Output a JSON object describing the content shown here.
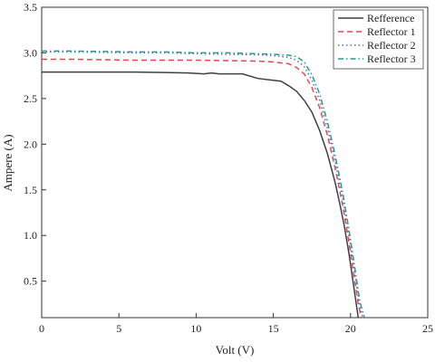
{
  "chart_data": {
    "type": "line",
    "xlabel": "Volt (V)",
    "ylabel": "Ampere (A)",
    "xlim": [
      0,
      25
    ],
    "ylim": [
      0.1,
      3.5
    ],
    "xticks": [
      "0",
      "5",
      "10",
      "15",
      "20",
      "25"
    ],
    "yticks": [
      "0.5",
      "1.0",
      "1.5",
      "2.0",
      "2.5",
      "3.0",
      "3.5"
    ],
    "grid": false,
    "legend_position": "top-right",
    "series": [
      {
        "name": "Refference",
        "color": "#404040",
        "dash": "solid",
        "points": [
          [
            0,
            2.79
          ],
          [
            2,
            2.79
          ],
          [
            4,
            2.79
          ],
          [
            6,
            2.79
          ],
          [
            8,
            2.785
          ],
          [
            9.5,
            2.78
          ],
          [
            10.5,
            2.77
          ],
          [
            11,
            2.78
          ],
          [
            11.5,
            2.77
          ],
          [
            12.5,
            2.77
          ],
          [
            13,
            2.77
          ],
          [
            14,
            2.72
          ],
          [
            15,
            2.7
          ],
          [
            15.5,
            2.69
          ],
          [
            16,
            2.64
          ],
          [
            16.5,
            2.58
          ],
          [
            17,
            2.48
          ],
          [
            17.5,
            2.35
          ],
          [
            18,
            2.15
          ],
          [
            18.5,
            1.9
          ],
          [
            19,
            1.58
          ],
          [
            19.3,
            1.35
          ],
          [
            19.6,
            1.1
          ],
          [
            19.9,
            0.8
          ],
          [
            20.2,
            0.45
          ],
          [
            20.5,
            0.1
          ]
        ]
      },
      {
        "name": "Reflector 1",
        "color": "#e8474f",
        "dash": "dashed",
        "points": [
          [
            0,
            2.93
          ],
          [
            2,
            2.93
          ],
          [
            4,
            2.925
          ],
          [
            6,
            2.92
          ],
          [
            8,
            2.92
          ],
          [
            10,
            2.92
          ],
          [
            12,
            2.915
          ],
          [
            14,
            2.91
          ],
          [
            15,
            2.9
          ],
          [
            16,
            2.88
          ],
          [
            16.5,
            2.84
          ],
          [
            17,
            2.77
          ],
          [
            17.5,
            2.62
          ],
          [
            18,
            2.4
          ],
          [
            18.5,
            2.1
          ],
          [
            19,
            1.74
          ],
          [
            19.5,
            1.32
          ],
          [
            19.9,
            0.92
          ],
          [
            20.2,
            0.58
          ],
          [
            20.5,
            0.25
          ],
          [
            20.7,
            0.1
          ]
        ]
      },
      {
        "name": "Reflector 2",
        "color": "#4a6fd0",
        "dash": "dotted",
        "points": [
          [
            0,
            3.01
          ],
          [
            2,
            3.01
          ],
          [
            4,
            3.005
          ],
          [
            6,
            3.0
          ],
          [
            8,
            3.0
          ],
          [
            10,
            2.99
          ],
          [
            12,
            2.985
          ],
          [
            14,
            2.98
          ],
          [
            15,
            2.97
          ],
          [
            16,
            2.95
          ],
          [
            16.5,
            2.92
          ],
          [
            17,
            2.85
          ],
          [
            17.5,
            2.7
          ],
          [
            18,
            2.48
          ],
          [
            18.5,
            2.18
          ],
          [
            19,
            1.82
          ],
          [
            19.5,
            1.4
          ],
          [
            19.9,
            1.0
          ],
          [
            20.3,
            0.55
          ],
          [
            20.6,
            0.22
          ],
          [
            20.8,
            0.1
          ]
        ]
      },
      {
        "name": "Reflector 3",
        "color": "#2a9a8a",
        "dash": "dashdot",
        "points": [
          [
            0,
            3.02
          ],
          [
            2,
            3.02
          ],
          [
            4,
            3.015
          ],
          [
            6,
            3.01
          ],
          [
            8,
            3.01
          ],
          [
            10,
            3.0
          ],
          [
            12,
            3.0
          ],
          [
            14,
            2.99
          ],
          [
            15,
            2.985
          ],
          [
            16,
            2.975
          ],
          [
            16.5,
            2.96
          ],
          [
            17,
            2.9
          ],
          [
            17.5,
            2.76
          ],
          [
            18,
            2.55
          ],
          [
            18.5,
            2.25
          ],
          [
            19,
            1.88
          ],
          [
            19.5,
            1.46
          ],
          [
            19.9,
            1.06
          ],
          [
            20.3,
            0.62
          ],
          [
            20.6,
            0.28
          ],
          [
            20.9,
            0.1
          ]
        ]
      }
    ]
  }
}
